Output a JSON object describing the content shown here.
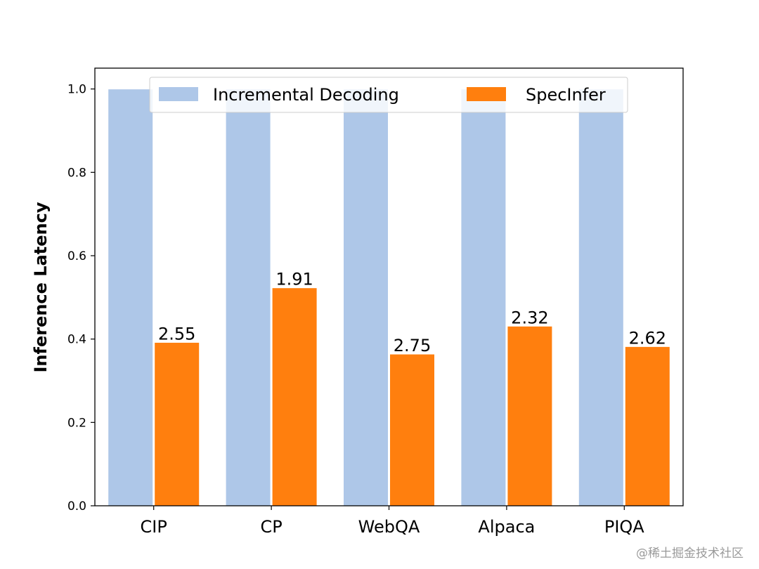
{
  "chart_data": {
    "type": "bar",
    "title": "",
    "xlabel": "",
    "ylabel": "Inference Latency",
    "ylim": [
      0,
      1.05
    ],
    "yticks": [
      "0.0",
      "0.2",
      "0.4",
      "0.6",
      "0.8",
      "1.0"
    ],
    "ytick_values": [
      0.0,
      0.2,
      0.4,
      0.6,
      0.8,
      1.0
    ],
    "categories": [
      "CIP",
      "CP",
      "WebQA",
      "Alpaca",
      "PIQA"
    ],
    "series": [
      {
        "name": "Incremental Decoding",
        "color": "#aec7e8",
        "values": [
          1.0,
          1.0,
          1.0,
          1.0,
          1.0
        ]
      },
      {
        "name": "SpecInfer",
        "color": "#ff7f0e",
        "values": [
          0.392,
          0.523,
          0.364,
          0.431,
          0.382
        ]
      }
    ],
    "data_labels": [
      "2.55",
      "1.91",
      "2.75",
      "2.32",
      "2.62"
    ],
    "legend_position": "top-center"
  },
  "watermark": "@稀土掘金技术社区"
}
